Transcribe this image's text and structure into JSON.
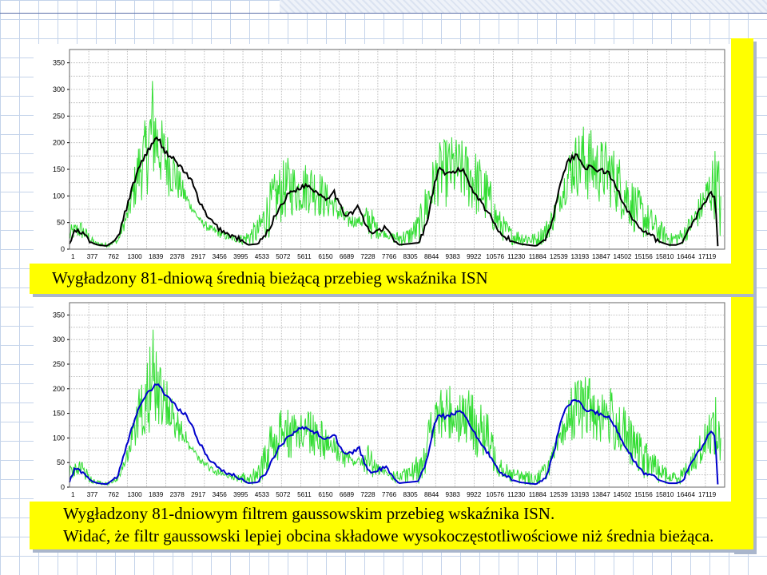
{
  "captions": {
    "top": "Wygładzony  81-dniową średnią bieżącą przebieg wskaźnika  ISN",
    "bottom_line1": "Wygładzony 81-dniowym filtrem gaussowskim przebieg wskaźnika ISN.",
    "bottom_line2": "Widać, że filtr gaussowski lepiej obcina składowe wysokoczęstotliwościowe niż średnia bieżąca."
  },
  "chart_data": [
    {
      "type": "line",
      "title": "",
      "xlabel": "",
      "ylabel": "",
      "ylim": [
        0,
        375
      ],
      "yticks": [
        0,
        50,
        100,
        150,
        200,
        250,
        300,
        350
      ],
      "xticks": [
        1,
        377,
        762,
        1300,
        1839,
        2378,
        2917,
        3456,
        3995,
        4533,
        5072,
        5611,
        6150,
        6689,
        7228,
        7766,
        8305,
        8844,
        9383,
        9922,
        10576,
        11230,
        11884,
        12539,
        13193,
        13847,
        14502,
        15156,
        15810,
        16464,
        17119
      ],
      "xlim": [
        1,
        17600
      ],
      "grid": true,
      "colors": {
        "raw": "#33dd33",
        "smooth": "#000000"
      },
      "series": [
        {
          "role": "raw",
          "x": [
            1,
            300,
            700,
            1000,
            1300,
            1600,
            1839,
            2100,
            2250,
            2378,
            2600,
            2800,
            3000,
            3250,
            3500,
            3800,
            4100,
            4400,
            4700,
            5072,
            5400,
            5700,
            5900,
            6150,
            6400,
            6689,
            6950,
            7228,
            7500,
            7766,
            8050,
            8305,
            8600,
            8844,
            9100,
            9383,
            9650,
            9922,
            10250,
            10576,
            10900,
            11230,
            11500,
            11884,
            12200,
            12539,
            12850,
            13193,
            13500,
            13847,
            14200,
            14502,
            14800,
            15156,
            15500,
            15810,
            16150,
            16464,
            16800,
            17119,
            17350,
            17500
          ],
          "y": [
            45,
            55,
            15,
            12,
            20,
            90,
            200,
            260,
            345,
            260,
            230,
            190,
            140,
            90,
            60,
            45,
            35,
            25,
            30,
            60,
            130,
            165,
            175,
            150,
            170,
            155,
            120,
            90,
            70,
            60,
            90,
            45,
            30,
            35,
            40,
            70,
            150,
            200,
            215,
            205,
            190,
            150,
            80,
            40,
            35,
            30,
            60,
            120,
            210,
            240,
            210,
            205,
            175,
            130,
            90,
            60,
            30,
            40,
            80,
            140,
            195,
            170
          ]
        },
        {
          "role": "smooth",
          "x": [
            1,
            150,
            377,
            600,
            762,
            1000,
            1300,
            1500,
            1839,
            2100,
            2378,
            2550,
            2700,
            2917,
            3100,
            3300,
            3456,
            3700,
            3995,
            4250,
            4533,
            4800,
            5072,
            5300,
            5611,
            5900,
            6150,
            6400,
            6689,
            6900,
            7100,
            7228,
            7400,
            7600,
            7766,
            7950,
            8100,
            8305,
            8500,
            8700,
            8844,
            9100,
            9383,
            9600,
            9800,
            9922,
            10100,
            10300,
            10576,
            10800,
            11000,
            11230,
            11450,
            11650,
            11884,
            12100,
            12300,
            12539,
            12800,
            13000,
            13193,
            13400,
            13600,
            13847,
            14100,
            14300,
            14502,
            14700,
            14900,
            15156,
            15400,
            15600,
            15810,
            16100,
            16300,
            16464,
            16700,
            16900,
            17119,
            17250,
            17350,
            17420
          ],
          "y": [
            10,
            35,
            28,
            12,
            8,
            6,
            20,
            70,
            150,
            185,
            210,
            185,
            175,
            160,
            145,
            125,
            95,
            60,
            40,
            28,
            20,
            8,
            10,
            30,
            75,
            105,
            115,
            120,
            105,
            95,
            110,
            85,
            65,
            70,
            80,
            45,
            30,
            35,
            40,
            20,
            8,
            10,
            12,
            50,
            120,
            150,
            140,
            145,
            150,
            115,
            95,
            70,
            45,
            25,
            15,
            10,
            8,
            6,
            20,
            60,
            130,
            165,
            178,
            155,
            150,
            148,
            140,
            115,
            85,
            55,
            30,
            28,
            15,
            8,
            8,
            12,
            45,
            70,
            95,
            105,
            100,
            0
          ]
        }
      ]
    },
    {
      "type": "line",
      "title": "",
      "xlabel": "",
      "ylabel": "",
      "ylim": [
        0,
        375
      ],
      "yticks": [
        0,
        50,
        100,
        150,
        200,
        250,
        300,
        350
      ],
      "xticks": [
        1,
        377,
        762,
        1300,
        1839,
        2378,
        2917,
        3456,
        3995,
        4533,
        5072,
        5611,
        6150,
        6689,
        7228,
        7766,
        8305,
        8844,
        9383,
        9922,
        10576,
        11230,
        11884,
        12539,
        13193,
        13847,
        14502,
        15156,
        15810,
        16464,
        17119
      ],
      "xlim": [
        1,
        17600
      ],
      "grid": true,
      "colors": {
        "raw": "#33dd33",
        "smooth": "#0000cc"
      },
      "series": [
        {
          "role": "raw",
          "x": [
            1,
            300,
            700,
            1000,
            1300,
            1600,
            1839,
            2100,
            2250,
            2378,
            2600,
            2800,
            3000,
            3250,
            3500,
            3800,
            4100,
            4400,
            4700,
            5072,
            5400,
            5700,
            5900,
            6150,
            6400,
            6689,
            6950,
            7228,
            7500,
            7766,
            8050,
            8305,
            8600,
            8844,
            9100,
            9383,
            9650,
            9922,
            10250,
            10576,
            10900,
            11230,
            11500,
            11884,
            12200,
            12539,
            12850,
            13193,
            13500,
            13847,
            14200,
            14502,
            14800,
            15156,
            15500,
            15810,
            16150,
            16464,
            16800,
            17119,
            17350,
            17500
          ],
          "y": [
            45,
            55,
            15,
            12,
            20,
            90,
            200,
            260,
            345,
            260,
            230,
            190,
            140,
            90,
            60,
            45,
            35,
            25,
            30,
            60,
            130,
            165,
            175,
            150,
            170,
            155,
            120,
            90,
            70,
            60,
            90,
            45,
            30,
            35,
            40,
            70,
            150,
            200,
            215,
            205,
            190,
            150,
            80,
            40,
            35,
            30,
            60,
            120,
            210,
            240,
            210,
            205,
            175,
            130,
            90,
            60,
            30,
            40,
            80,
            140,
            195,
            170
          ]
        },
        {
          "role": "smooth",
          "x": [
            1,
            150,
            377,
            600,
            762,
            1000,
            1300,
            1500,
            1839,
            2100,
            2378,
            2550,
            2700,
            2917,
            3100,
            3300,
            3456,
            3700,
            3995,
            4250,
            4533,
            4800,
            5072,
            5300,
            5611,
            5900,
            6150,
            6400,
            6689,
            6900,
            7100,
            7228,
            7400,
            7600,
            7766,
            7950,
            8100,
            8305,
            8500,
            8700,
            8844,
            9100,
            9383,
            9600,
            9800,
            9922,
            10100,
            10300,
            10576,
            10800,
            11000,
            11230,
            11450,
            11650,
            11884,
            12100,
            12300,
            12539,
            12800,
            13000,
            13193,
            13400,
            13600,
            13847,
            14100,
            14300,
            14502,
            14700,
            14900,
            15156,
            15400,
            15600,
            15810,
            16100,
            16300,
            16464,
            16700,
            16900,
            17119,
            17250,
            17350,
            17420
          ],
          "y": [
            10,
            38,
            30,
            12,
            8,
            6,
            22,
            75,
            160,
            190,
            212,
            190,
            178,
            160,
            150,
            125,
            95,
            62,
            40,
            28,
            20,
            8,
            10,
            32,
            80,
            105,
            118,
            120,
            108,
            95,
            112,
            88,
            65,
            70,
            82,
            45,
            30,
            35,
            40,
            20,
            8,
            10,
            12,
            55,
            125,
            150,
            142,
            150,
            152,
            118,
            95,
            70,
            45,
            25,
            15,
            10,
            8,
            6,
            22,
            65,
            135,
            168,
            178,
            158,
            152,
            148,
            140,
            118,
            88,
            55,
            30,
            28,
            15,
            8,
            8,
            12,
            48,
            72,
            98,
            118,
            100,
            0
          ]
        }
      ]
    }
  ]
}
